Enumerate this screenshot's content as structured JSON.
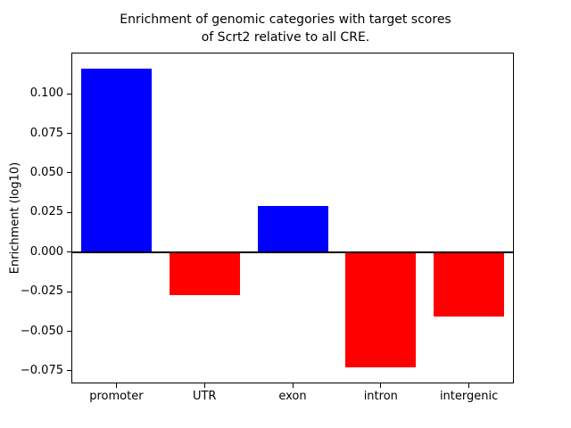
{
  "chart_data": {
    "type": "bar",
    "title": "Enrichment of genomic categories with target scores\nof Scrt2 relative to all CRE.",
    "xlabel": "",
    "ylabel": "Enrichment (log10)",
    "categories": [
      "promoter",
      "UTR",
      "exon",
      "intron",
      "intergenic"
    ],
    "values": [
      0.116,
      -0.027,
      0.029,
      -0.073,
      -0.041
    ],
    "ylim": [
      -0.0824,
      0.1254
    ],
    "yticks": [
      0.1,
      0.075,
      0.05,
      0.025,
      0.0,
      -0.025,
      -0.05,
      -0.075
    ],
    "ytick_labels": [
      "0.100",
      "0.075",
      "0.050",
      "0.025",
      "0.000",
      "−0.025",
      "−0.050",
      "−0.075"
    ],
    "bar_colors": {
      "positive": "#0000ff",
      "negative": "#ff0000"
    },
    "zero_line": true,
    "grid": false,
    "legend": null,
    "background": "#ffffff"
  }
}
